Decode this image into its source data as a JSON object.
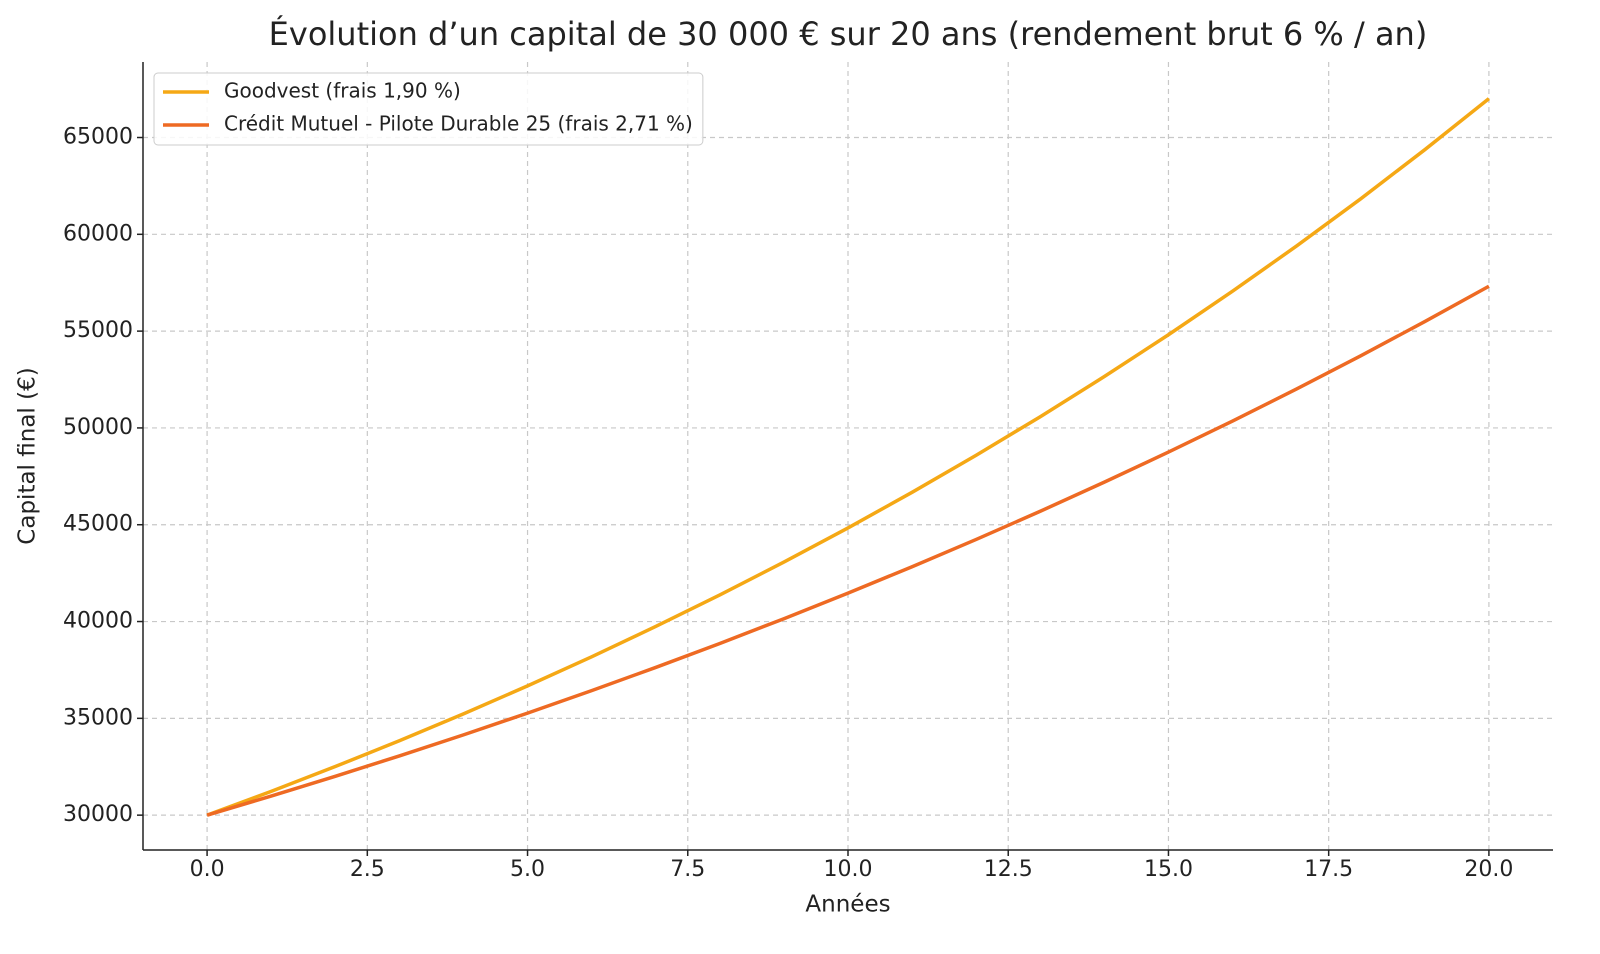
{
  "chart_data": {
    "type": "line",
    "title": "Évolution d’un capital de 30 000 € sur 20 ans (rendement brut 6 % / an)",
    "x_label": "Années",
    "y_label": "Capital final (€)",
    "x": [
      0,
      1,
      2,
      3,
      4,
      5,
      6,
      7,
      8,
      9,
      10,
      11,
      12,
      13,
      14,
      15,
      16,
      17,
      18,
      19,
      20
    ],
    "series": [
      {
        "name": "Goodvest (frais 1,90 %)",
        "color": "#f5a815",
        "values": [
          30000,
          31230,
          32510,
          33843,
          35231,
          36676,
          38179,
          39745,
          41374,
          43070,
          44836,
          46675,
          48588,
          50580,
          52654,
          54813,
          57060,
          59400,
          61835,
          64371,
          67010
        ]
      },
      {
        "name": "Crédit Mutuel - Pilote Durable 25 (frais 2,71 %)",
        "color": "#ee6a23",
        "values": [
          30000,
          30987,
          32007,
          33060,
          34147,
          35271,
          36431,
          37630,
          38868,
          40146,
          41467,
          42832,
          44241,
          45696,
          47200,
          48752,
          50356,
          52013,
          53724,
          55492,
          57318
        ]
      }
    ],
    "xlim": [
      -1,
      21
    ],
    "ylim": [
      28200,
      68900
    ],
    "xticks": [
      {
        "value": 0,
        "label": "0.0"
      },
      2.5,
      {
        "value": 5,
        "label": "5.0"
      },
      7.5,
      {
        "value": 10,
        "label": "10.0"
      },
      12.5,
      {
        "value": 15,
        "label": "15.0"
      },
      17.5,
      {
        "value": 20,
        "label": "20.0"
      }
    ],
    "yticks": [
      30000,
      35000,
      40000,
      45000,
      50000,
      55000,
      60000,
      65000
    ],
    "grid": true,
    "legend": "upper-left"
  }
}
